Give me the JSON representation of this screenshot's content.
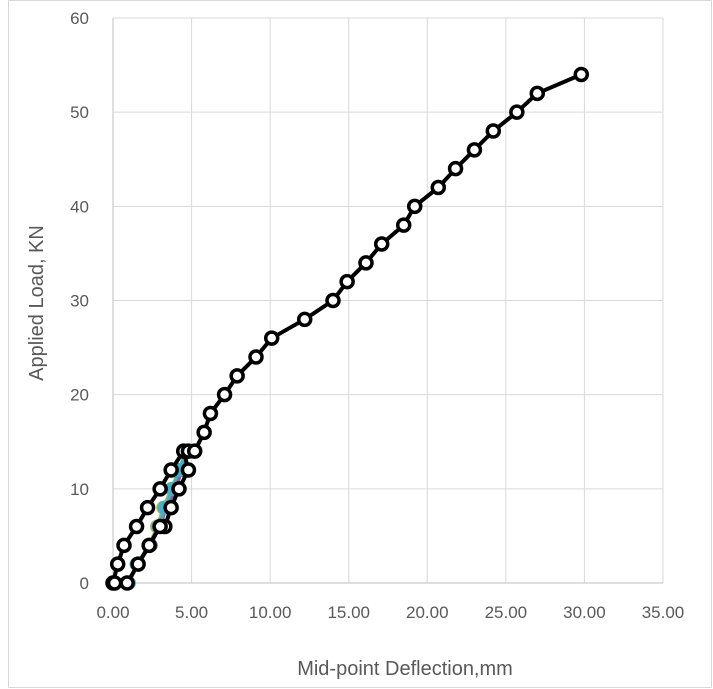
{
  "chart_data": {
    "type": "scatter",
    "xlabel": "Mid-point Deflection,mm",
    "ylabel": "Applied Load, KN",
    "xlim": [
      0,
      35
    ],
    "ylim": [
      0,
      60
    ],
    "x_ticks": [
      "0.00",
      "5.00",
      "10.00",
      "15.00",
      "20.00",
      "25.00",
      "30.00",
      "35.00"
    ],
    "y_ticks": [
      "0",
      "10",
      "20",
      "30",
      "40",
      "50",
      "60"
    ],
    "grid": true,
    "legend": "none",
    "series": [
      {
        "color": "#c0504d",
        "x": [
          0,
          1,
          1.6,
          2.4,
          2.9,
          3.3,
          3.8,
          4.3,
          4.8
        ],
        "y": [
          0,
          0,
          2,
          4,
          6,
          8,
          10,
          12,
          14
        ]
      },
      {
        "color": "#9bbb59",
        "x": [
          0,
          1,
          1.5,
          2.3,
          2.8,
          3.2,
          3.7,
          4.2,
          4.6
        ],
        "y": [
          0,
          0,
          2,
          4,
          6,
          8,
          10,
          12,
          14
        ]
      },
      {
        "color": "#8064a2",
        "x": [
          0,
          1,
          1.6,
          2.4,
          3.0,
          3.4,
          4.0,
          4.4,
          4.9
        ],
        "y": [
          0,
          0,
          2,
          4,
          6,
          8,
          10,
          12,
          14
        ]
      },
      {
        "color": "#4bacc6",
        "x": [
          0,
          1,
          1.5,
          2.3,
          2.9,
          3.3,
          3.8,
          4.2,
          4.7
        ],
        "y": [
          0,
          0,
          2,
          4,
          6,
          8,
          10,
          12,
          14
        ]
      },
      {
        "color": "#000000",
        "x": [
          0,
          0.3,
          0.7,
          1.5,
          2.2,
          3.0,
          3.7,
          4.5,
          4.8,
          4.2,
          3.7,
          3.3,
          3.0,
          2.3,
          1.6,
          0.9,
          0.1
        ],
        "y": [
          0,
          2,
          4,
          6,
          8,
          10,
          12,
          14,
          12,
          10,
          8,
          6,
          6,
          4,
          2,
          0,
          0
        ]
      },
      {
        "color": "#000000",
        "x": [
          4.8,
          5.2,
          5.8,
          6.2,
          7.1,
          7.9,
          9.1,
          10.1,
          12.2,
          14.0,
          14.9,
          16.1,
          17.1,
          18.5,
          19.2,
          20.7,
          21.8,
          23.0,
          24.2,
          25.7,
          27.0,
          29.8
        ],
        "y": [
          14,
          14,
          16,
          18,
          20,
          22,
          24,
          26,
          28,
          30,
          32,
          34,
          36,
          38,
          40,
          42,
          44,
          46,
          48,
          50,
          52,
          54
        ]
      }
    ]
  }
}
